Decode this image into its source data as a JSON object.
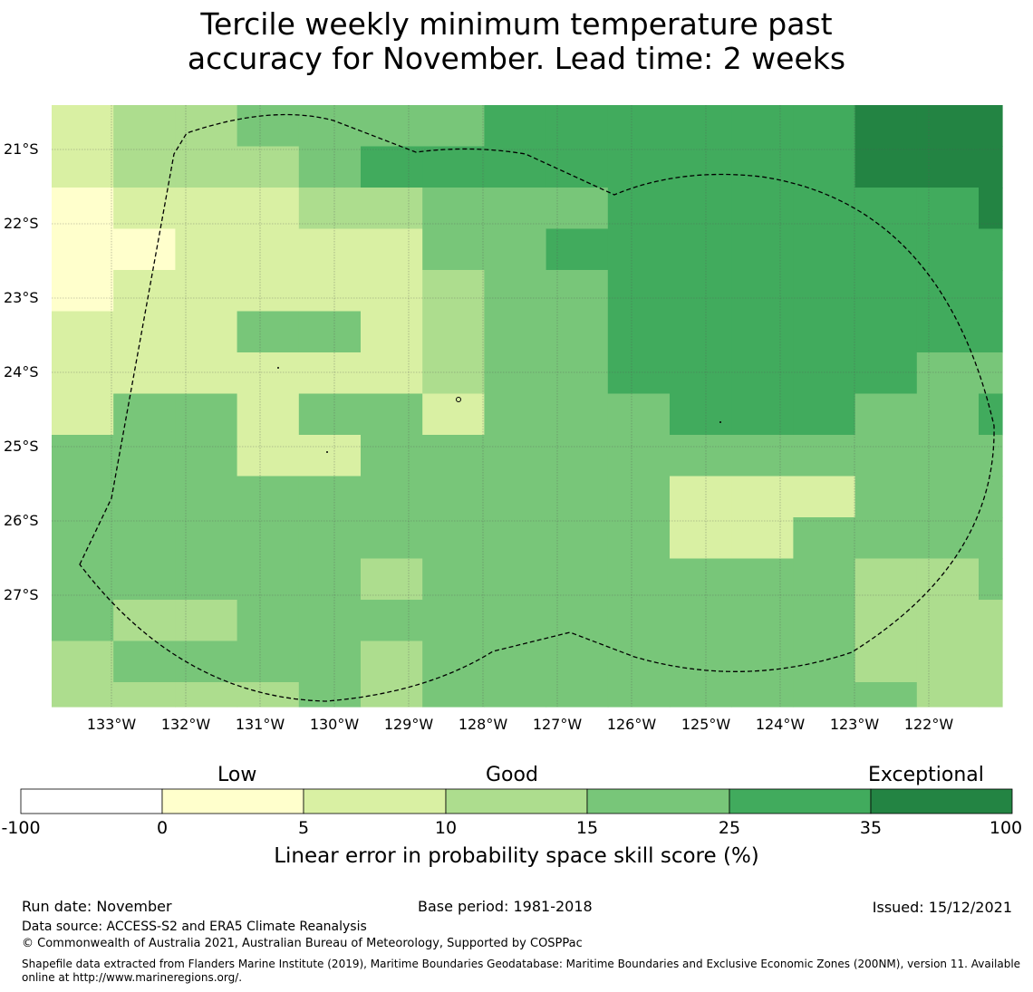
{
  "title_line1": "Tercile weekly minimum temperature past",
  "title_line2": "accuracy for November. Lead time: 2 weeks",
  "map": {
    "lat_labels": [
      "21°S",
      "22°S",
      "23°S",
      "24°S",
      "25°S",
      "26°S",
      "27°S"
    ],
    "lon_labels": [
      "133°W",
      "132°W",
      "131°W",
      "130°W",
      "129°W",
      "128°W",
      "127°W",
      "126°W",
      "125°W",
      "124°W",
      "123°W",
      "122°W"
    ],
    "grid_values": [
      [
        5,
        10,
        10,
        15,
        15,
        15,
        15,
        25,
        25,
        25,
        25,
        25,
        25,
        35,
        35,
        35
      ],
      [
        5,
        10,
        10,
        10,
        15,
        25,
        25,
        25,
        25,
        25,
        25,
        25,
        25,
        35,
        35,
        35
      ],
      [
        0,
        5,
        5,
        5,
        10,
        10,
        15,
        15,
        15,
        25,
        25,
        25,
        25,
        25,
        25,
        35
      ],
      [
        0,
        0,
        5,
        5,
        5,
        5,
        15,
        15,
        25,
        25,
        25,
        25,
        25,
        25,
        25,
        25
      ],
      [
        0,
        5,
        5,
        5,
        5,
        5,
        10,
        15,
        15,
        25,
        25,
        25,
        25,
        25,
        25,
        25
      ],
      [
        5,
        5,
        5,
        15,
        15,
        5,
        10,
        15,
        15,
        25,
        25,
        25,
        25,
        25,
        25,
        25
      ],
      [
        5,
        5,
        5,
        5,
        5,
        5,
        10,
        15,
        15,
        25,
        25,
        25,
        25,
        25,
        15,
        15
      ],
      [
        5,
        15,
        15,
        5,
        15,
        15,
        5,
        15,
        15,
        15,
        25,
        25,
        25,
        15,
        15,
        25
      ],
      [
        15,
        15,
        15,
        5,
        5,
        15,
        15,
        15,
        15,
        15,
        15,
        15,
        15,
        15,
        15,
        15
      ],
      [
        15,
        15,
        15,
        15,
        15,
        15,
        15,
        15,
        15,
        15,
        5,
        5,
        5,
        15,
        15,
        15
      ],
      [
        15,
        15,
        15,
        15,
        15,
        15,
        15,
        15,
        15,
        15,
        5,
        5,
        15,
        15,
        15,
        15
      ],
      [
        15,
        15,
        15,
        15,
        15,
        10,
        15,
        15,
        15,
        15,
        15,
        15,
        15,
        10,
        10,
        15
      ],
      [
        15,
        10,
        10,
        15,
        15,
        15,
        15,
        15,
        15,
        15,
        15,
        15,
        15,
        10,
        10,
        10
      ],
      [
        10,
        15,
        15,
        15,
        15,
        10,
        15,
        15,
        15,
        15,
        15,
        15,
        15,
        10,
        10,
        10
      ],
      [
        10,
        10,
        10,
        10,
        15,
        10,
        15,
        15,
        15,
        15,
        15,
        15,
        15,
        15,
        10,
        10
      ]
    ]
  },
  "colorbar": {
    "category_labels": [
      "Low",
      "Good",
      "Exceptional"
    ],
    "tick_labels": [
      "-100",
      "0",
      "5",
      "10",
      "15",
      "25",
      "35",
      "100"
    ],
    "colors": [
      "#ffffff",
      "#ffffcc",
      "#d9f0a3",
      "#addd8e",
      "#78c679",
      "#41ab5d",
      "#238443"
    ],
    "caption": "Linear error in probability space skill score (%)"
  },
  "footer": {
    "run_date": "Run date: November",
    "base_period": "Base period: 1981-2018",
    "issued": "Issued: 15/12/2021",
    "data_source": "Data source: ACCESS-S2 and ERA5 Climate Reanalysis",
    "copyright": "© Commonwealth of Australia 2021, Australian Bureau of Meteorology, Supported by COSPPac",
    "shapefile": "Shapefile data extracted from Flanders Marine Institute (2019), Maritime Boundaries Geodatabase: Maritime Boundaries and Exclusive Economic Zones (200NM), version 11. Available online at http://www.marineregions.org/."
  }
}
